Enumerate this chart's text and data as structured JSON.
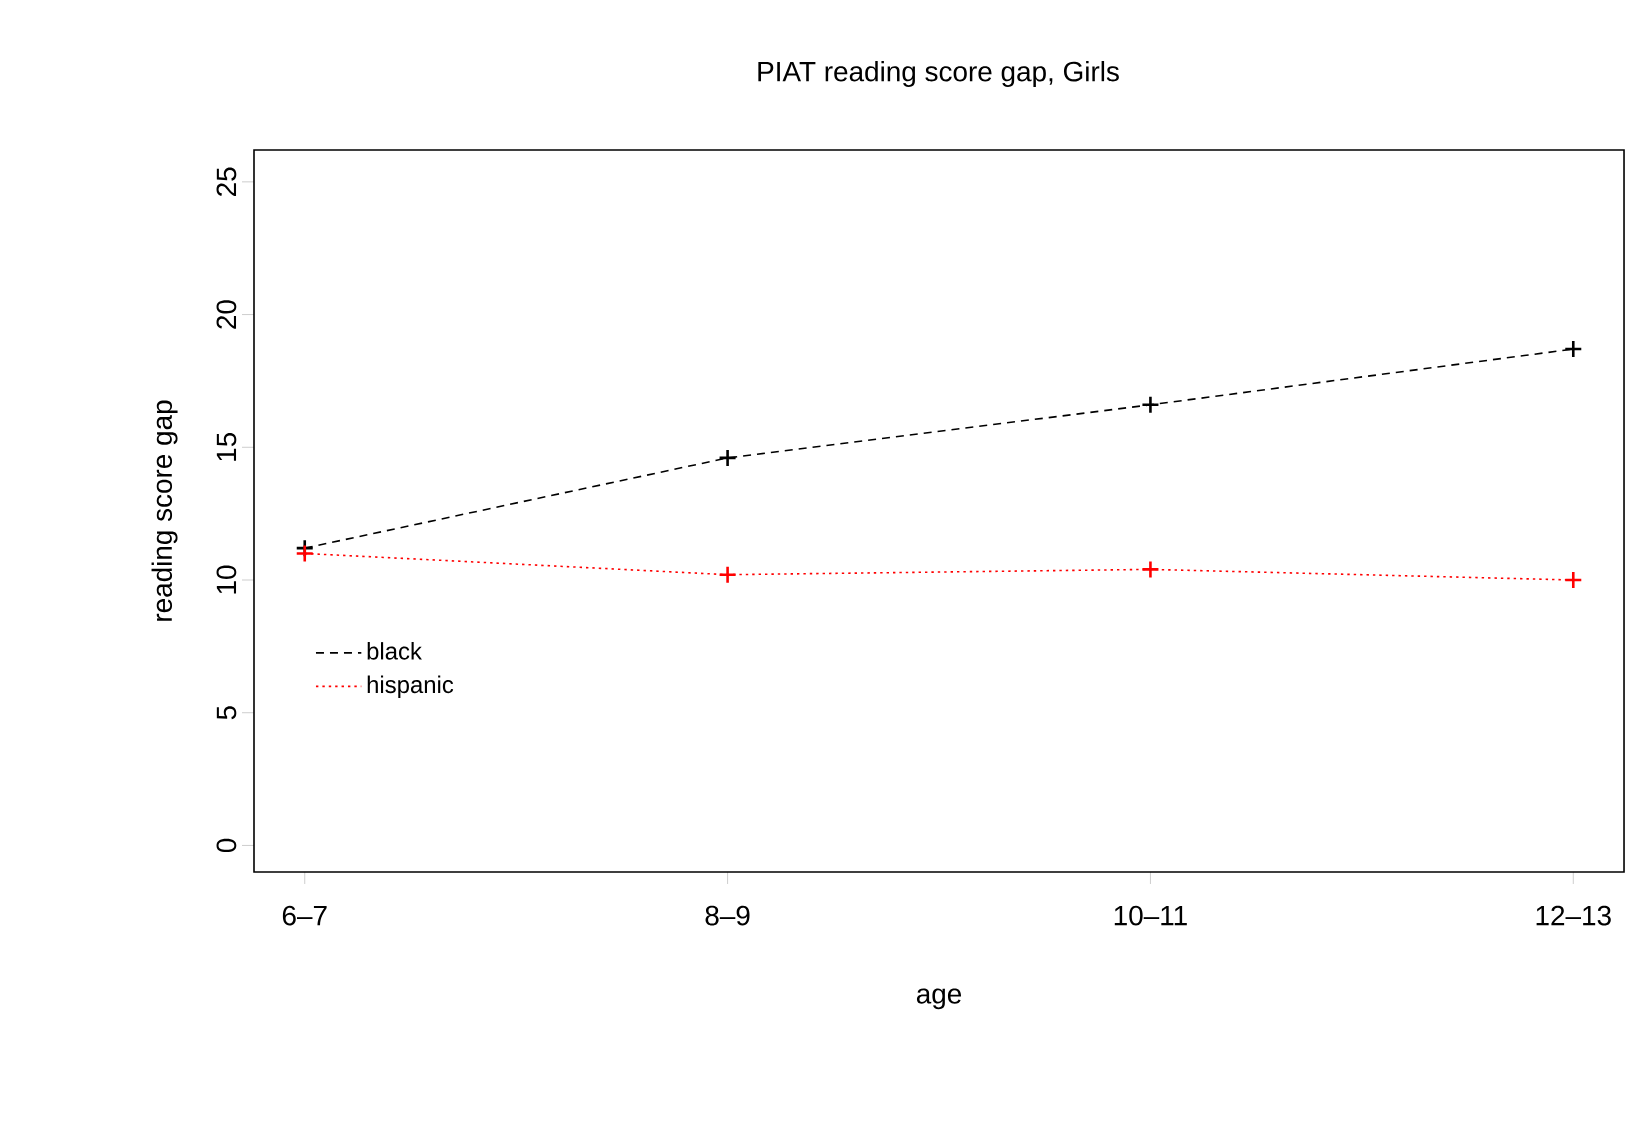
{
  "chart_data": {
    "type": "line",
    "title": "PIAT reading score gap, Girls",
    "xlabel": "age",
    "ylabel": "reading score gap",
    "categories": [
      "6–7",
      "8–9",
      "10–11",
      "12–13"
    ],
    "series": [
      {
        "name": "black",
        "color": "#000000",
        "line_style": "dashed",
        "values": [
          11.2,
          14.6,
          16.6,
          18.7
        ]
      },
      {
        "name": "hispanic",
        "color": "#ff0000",
        "line_style": "dotted",
        "values": [
          11.0,
          10.2,
          10.4,
          10.0
        ]
      }
    ],
    "ylim": [
      -1,
      26.2
    ],
    "yticks": [
      0,
      5,
      10,
      15,
      20,
      25
    ],
    "marker": "cross",
    "legend": "left",
    "grid": false
  }
}
